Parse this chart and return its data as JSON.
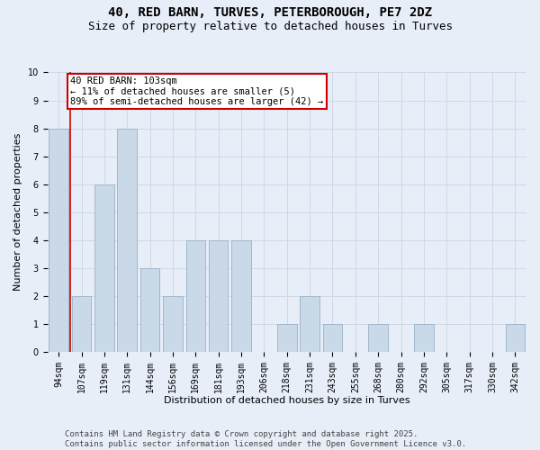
{
  "title": "40, RED BARN, TURVES, PETERBOROUGH, PE7 2DZ",
  "subtitle": "Size of property relative to detached houses in Turves",
  "xlabel": "Distribution of detached houses by size in Turves",
  "ylabel": "Number of detached properties",
  "categories": [
    "94sqm",
    "107sqm",
    "119sqm",
    "131sqm",
    "144sqm",
    "156sqm",
    "169sqm",
    "181sqm",
    "193sqm",
    "206sqm",
    "218sqm",
    "231sqm",
    "243sqm",
    "255sqm",
    "268sqm",
    "280sqm",
    "292sqm",
    "305sqm",
    "317sqm",
    "330sqm",
    "342sqm"
  ],
  "values": [
    8,
    2,
    6,
    8,
    3,
    2,
    4,
    4,
    4,
    0,
    1,
    2,
    1,
    0,
    1,
    0,
    1,
    0,
    0,
    0,
    1
  ],
  "bar_color": "#c9d9e8",
  "bar_edgecolor": "#a0b8cc",
  "vline_color": "#cc0000",
  "vline_x": 0.5,
  "annotation_text": "40 RED BARN: 103sqm\n← 11% of detached houses are smaller (5)\n89% of semi-detached houses are larger (42) →",
  "annotation_box_edgecolor": "#cc0000",
  "annotation_box_facecolor": "#ffffff",
  "ylim": [
    0,
    10
  ],
  "yticks": [
    0,
    1,
    2,
    3,
    4,
    5,
    6,
    7,
    8,
    9,
    10
  ],
  "grid_color": "#d0d8e8",
  "background_color": "#e8eef8",
  "footer": "Contains HM Land Registry data © Crown copyright and database right 2025.\nContains public sector information licensed under the Open Government Licence v3.0.",
  "title_fontsize": 10,
  "subtitle_fontsize": 9,
  "label_fontsize": 8,
  "tick_fontsize": 7,
  "annotation_fontsize": 7.5,
  "footer_fontsize": 6.5
}
